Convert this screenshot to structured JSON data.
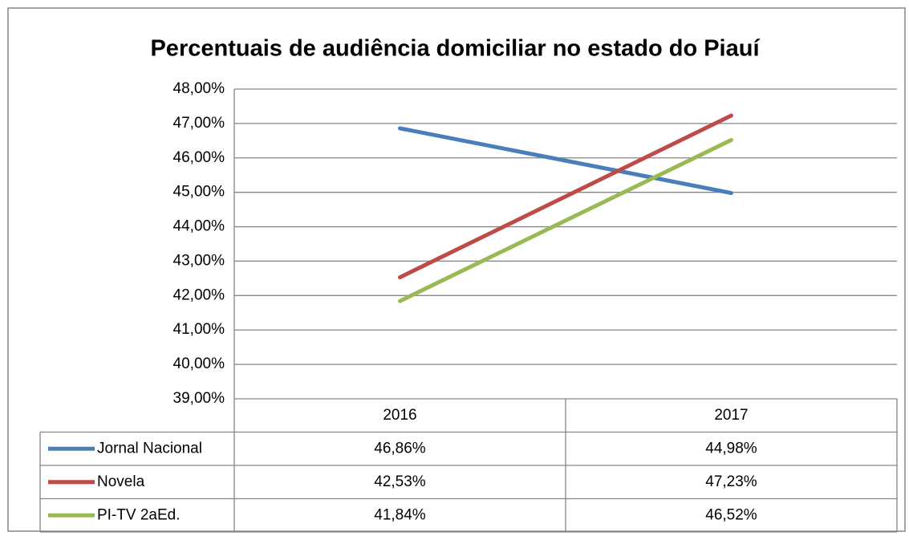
{
  "chart_data": {
    "type": "line",
    "title": "Percentuais de audiência domiciliar no estado do Piauí",
    "categories": [
      "2016",
      "2017"
    ],
    "series": [
      {
        "name": "Jornal Nacional",
        "color": "#4a7ebb",
        "values": [
          46.86,
          44.98
        ],
        "value_labels": [
          "46,86%",
          "44,98%"
        ]
      },
      {
        "name": "Novela",
        "color": "#be4b48",
        "values": [
          42.53,
          47.23
        ],
        "value_labels": [
          "42,53%",
          "47,23%"
        ]
      },
      {
        "name": "PI-TV 2aEd.",
        "color": "#98b954",
        "values": [
          41.84,
          46.52
        ],
        "value_labels": [
          "41,84%",
          "46,52%"
        ]
      }
    ],
    "ylim": [
      39,
      48
    ],
    "yticks": [
      {
        "value": 39,
        "label": "39,00%"
      },
      {
        "value": 40,
        "label": "40,00%"
      },
      {
        "value": 41,
        "label": "41,00%"
      },
      {
        "value": 42,
        "label": "42,00%"
      },
      {
        "value": 43,
        "label": "43,00%"
      },
      {
        "value": 44,
        "label": "44,00%"
      },
      {
        "value": 45,
        "label": "45,00%"
      },
      {
        "value": 46,
        "label": "46,00%"
      },
      {
        "value": 47,
        "label": "47,00%"
      },
      {
        "value": 48,
        "label": "48,00%"
      }
    ],
    "grid": true,
    "data_table": true
  }
}
